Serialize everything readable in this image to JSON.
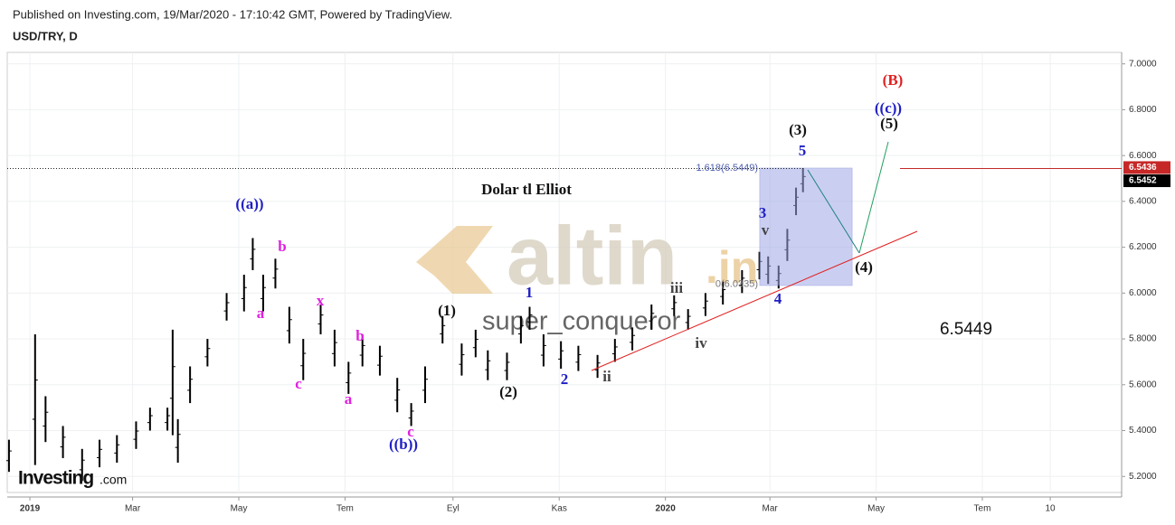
{
  "header": {
    "published": "Published on Investing.com, 19/Mar/2020 - 17:10:42 GMT, Powered by TradingView.",
    "symbol": "USD/TRY, D"
  },
  "chart_data": {
    "type": "range-bar",
    "title": "Dolar tl Elliot",
    "color": "#000000",
    "x": [
      -12,
      3,
      9,
      19,
      30,
      40,
      50,
      61,
      69,
      79,
      82,
      85,
      92,
      102,
      113,
      123,
      128,
      134,
      141,
      149,
      157,
      167,
      175,
      183,
      191,
      201,
      211,
      219,
      227,
      237,
      248,
      256,
      263,
      274,
      282,
      287,
      295,
      305,
      315,
      326,
      336,
      346,
      357,
      370,
      378,
      388,
      398,
      409,
      419,
      424,
      430,
      435,
      440,
      444
    ],
    "high": [
      5.36,
      5.82,
      5.55,
      5.42,
      5.32,
      5.36,
      5.38,
      5.44,
      5.5,
      5.5,
      5.84,
      5.45,
      5.68,
      5.8,
      6.0,
      6.08,
      6.24,
      6.08,
      6.15,
      5.94,
      5.8,
      5.95,
      5.84,
      5.7,
      5.82,
      5.77,
      5.63,
      5.52,
      5.68,
      5.9,
      5.78,
      5.84,
      5.75,
      5.74,
      5.9,
      5.94,
      5.82,
      5.79,
      5.77,
      5.73,
      5.8,
      5.85,
      5.95,
      5.99,
      5.93,
      6.0,
      6.05,
      6.1,
      6.18,
      6.16,
      6.12,
      6.28,
      6.46,
      6.5452
    ],
    "low": [
      5.22,
      5.25,
      5.35,
      5.28,
      5.18,
      5.24,
      5.26,
      5.32,
      5.4,
      5.4,
      5.38,
      5.26,
      5.52,
      5.68,
      5.88,
      5.92,
      6.1,
      5.92,
      6.02,
      5.78,
      5.62,
      5.82,
      5.68,
      5.56,
      5.68,
      5.64,
      5.48,
      5.42,
      5.52,
      5.78,
      5.64,
      5.72,
      5.62,
      5.62,
      5.78,
      5.84,
      5.68,
      5.67,
      5.66,
      5.63,
      5.7,
      5.75,
      5.84,
      5.9,
      5.84,
      5.9,
      5.95,
      6.0,
      6.06,
      6.04,
      6.02,
      6.14,
      6.34,
      6.44
    ],
    "xlim": [
      -13,
      627
    ],
    "ylim": [
      5.13,
      7.05
    ],
    "xticks": [
      {
        "value": 0,
        "label": "2019"
      },
      {
        "value": 59,
        "label": "Mar"
      },
      {
        "value": 120,
        "label": "May"
      },
      {
        "value": 181,
        "label": "Tem"
      },
      {
        "value": 243,
        "label": "Eyl"
      },
      {
        "value": 304,
        "label": "Kas"
      },
      {
        "value": 365,
        "label": "2020"
      },
      {
        "value": 425,
        "label": "Mar"
      },
      {
        "value": 486,
        "label": "May"
      },
      {
        "value": 547,
        "label": "Tem"
      },
      {
        "value": 586,
        "label": "10"
      }
    ],
    "yticks": [
      {
        "value": 5.2,
        "label": "5.2000"
      },
      {
        "value": 5.4,
        "label": "5.4000"
      },
      {
        "value": 5.6,
        "label": "5.6000"
      },
      {
        "value": 5.8,
        "label": "5.8000"
      },
      {
        "value": 6.0,
        "label": "6.0000"
      },
      {
        "value": 6.2,
        "label": "6.2000"
      },
      {
        "value": 6.4,
        "label": "6.4000"
      },
      {
        "value": 6.6,
        "label": "6.6000"
      },
      {
        "value": 6.8,
        "label": "6.8000"
      },
      {
        "value": 7.0,
        "label": "7.0000"
      }
    ],
    "grid": true,
    "price_tags": [
      {
        "value": 6.5436,
        "label": "6.5436",
        "color": "#c62828"
      },
      {
        "value": 6.5452,
        "label": "6.5452",
        "color": "#000000"
      }
    ],
    "fib": [
      {
        "value": 6.5449,
        "label": "1.618(6.5449)"
      },
      {
        "value": 6.0335,
        "label": "0(6.0335)"
      }
    ],
    "target": "6.5449",
    "watermark": [
      "altin",
      ".in",
      "super_conqueror"
    ],
    "logo": [
      "Investing",
      ".com"
    ],
    "annotations": [
      {
        "text": "((a))",
        "color": "#1f1fc4"
      },
      {
        "text": "b",
        "color": "#e020e0"
      },
      {
        "text": "a",
        "color": "#e020e0"
      },
      {
        "text": "x",
        "color": "#e020e0"
      },
      {
        "text": "c",
        "color": "#e020e0"
      },
      {
        "text": "b",
        "color": "#e020e0"
      },
      {
        "text": "a",
        "color": "#e020e0"
      },
      {
        "text": "c",
        "color": "#e020e0"
      },
      {
        "text": "((b))",
        "color": "#1f1fc4"
      },
      {
        "text": "(1)",
        "color": "#111111"
      },
      {
        "text": "(2)",
        "color": "#111111"
      },
      {
        "text": "1",
        "color": "#1f1fc4"
      },
      {
        "text": "2",
        "color": "#1f1fc4"
      },
      {
        "text": "iii",
        "color": "#444444"
      },
      {
        "text": "ii",
        "color": "#444444"
      },
      {
        "text": "iv",
        "color": "#444444"
      },
      {
        "text": "v",
        "color": "#444444"
      },
      {
        "text": "3",
        "color": "#1f1fc4"
      },
      {
        "text": "4",
        "color": "#1f1fc4"
      },
      {
        "text": "5",
        "color": "#1f1fc4"
      },
      {
        "text": "(3)",
        "color": "#111111"
      },
      {
        "text": "(4)",
        "color": "#111111"
      },
      {
        "text": "(5)",
        "color": "#111111"
      },
      {
        "text": "((c))",
        "color": "#1f1fc4"
      },
      {
        "text": "(B)",
        "color": "#e02020"
      }
    ]
  }
}
